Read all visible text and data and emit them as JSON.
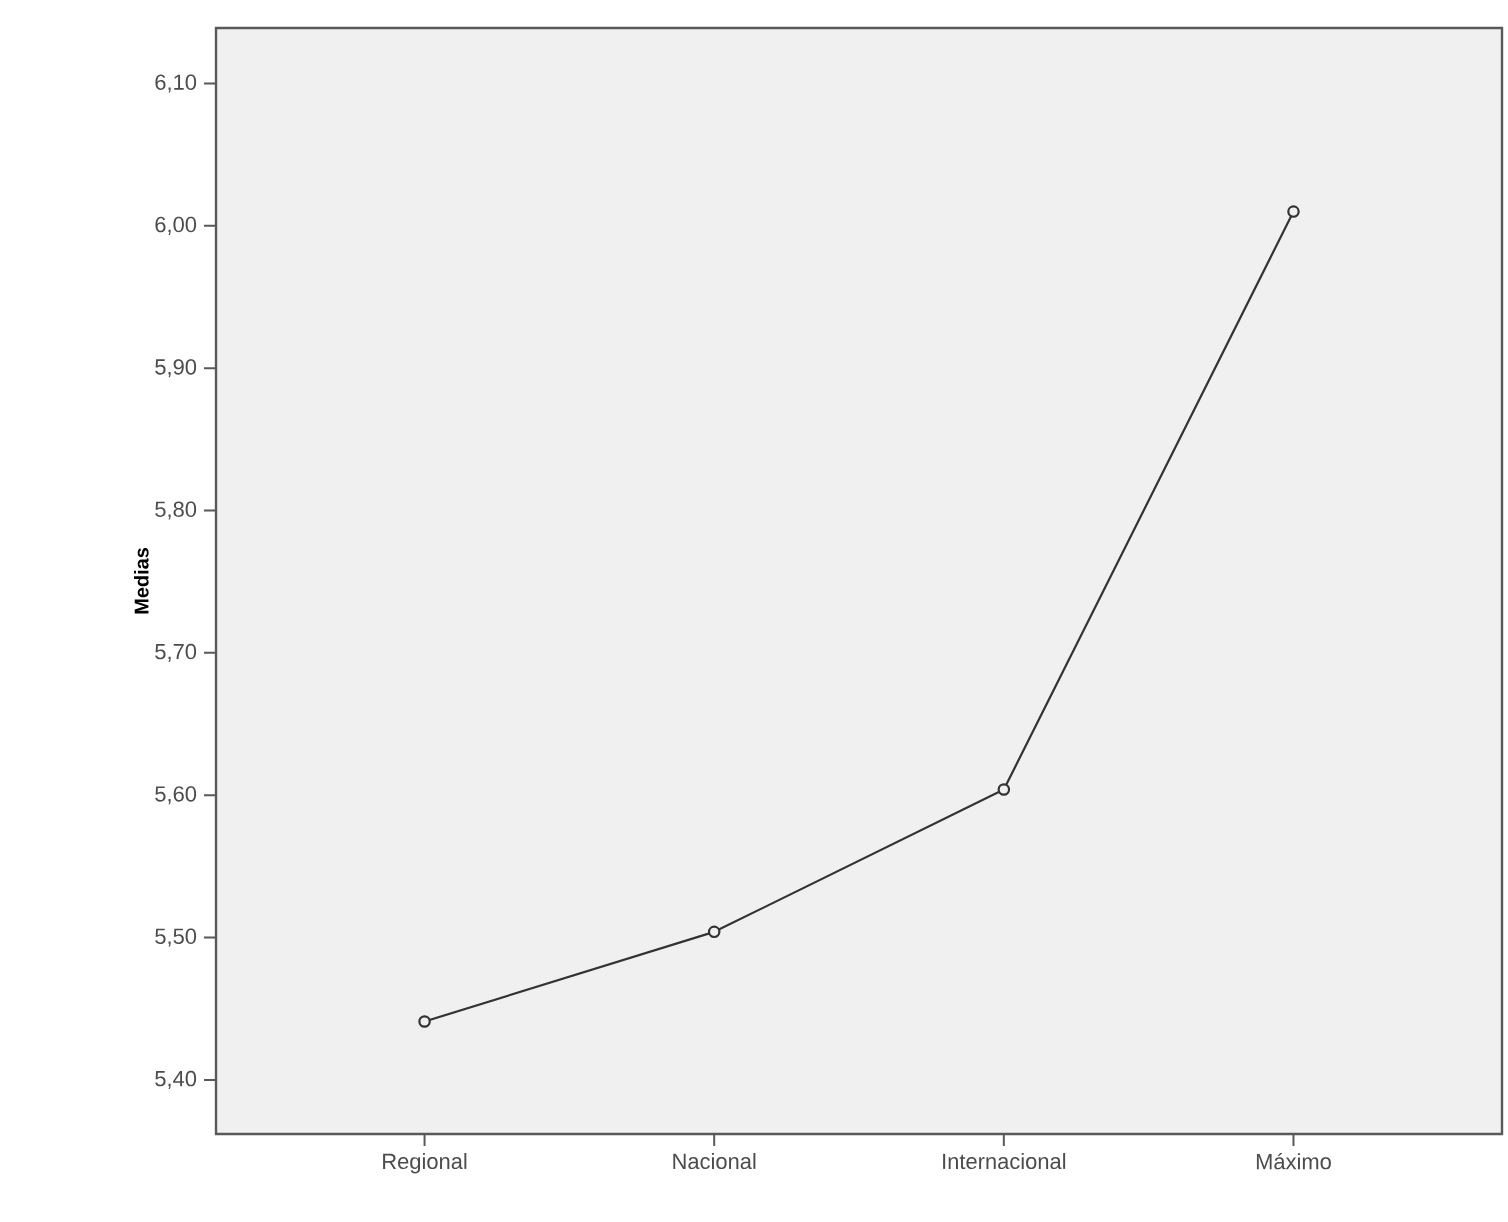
{
  "chart_data": {
    "type": "line",
    "ylabel": "Medias",
    "categories": [
      "Regional",
      "Nacional",
      "Internacional",
      "Máximo"
    ],
    "values": [
      5.441,
      5.504,
      5.604,
      6.01
    ],
    "color": "#333333",
    "marker": "circle",
    "line_style": "solid",
    "grid": false,
    "ylim": [
      5.362,
      6.139
    ],
    "yticks": [
      {
        "value": 5.4,
        "label": "5,40"
      },
      {
        "value": 5.5,
        "label": "5,50"
      },
      {
        "value": 5.6,
        "label": "5,60"
      },
      {
        "value": 5.7,
        "label": "5,70"
      },
      {
        "value": 5.8,
        "label": "5,80"
      },
      {
        "value": 5.9,
        "label": "5,90"
      },
      {
        "value": 6.0,
        "label": "6,00"
      },
      {
        "value": 6.1,
        "label": "6,10"
      }
    ]
  }
}
